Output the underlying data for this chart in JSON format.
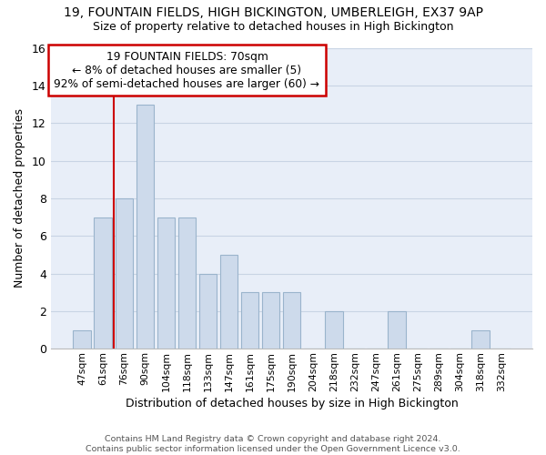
{
  "title1": "19, FOUNTAIN FIELDS, HIGH BICKINGTON, UMBERLEIGH, EX37 9AP",
  "title2": "Size of property relative to detached houses in High Bickington",
  "xlabel": "Distribution of detached houses by size in High Bickington",
  "ylabel": "Number of detached properties",
  "categories": [
    "47sqm",
    "61sqm",
    "76sqm",
    "90sqm",
    "104sqm",
    "118sqm",
    "133sqm",
    "147sqm",
    "161sqm",
    "175sqm",
    "190sqm",
    "204sqm",
    "218sqm",
    "232sqm",
    "247sqm",
    "261sqm",
    "275sqm",
    "289sqm",
    "304sqm",
    "318sqm",
    "332sqm"
  ],
  "values": [
    1,
    7,
    8,
    13,
    7,
    7,
    4,
    5,
    3,
    3,
    3,
    0,
    2,
    0,
    0,
    2,
    0,
    0,
    0,
    1,
    0
  ],
  "bar_color": "#cddaeb",
  "bar_edge_color": "#9ab4cc",
  "vline_color": "#cc0000",
  "vline_x": 1.5,
  "annotation_text": "19 FOUNTAIN FIELDS: 70sqm\n← 8% of detached houses are smaller (5)\n92% of semi-detached houses are larger (60) →",
  "annotation_box_color": "#ffffff",
  "annotation_box_edge_color": "#cc0000",
  "ylim": [
    0,
    16
  ],
  "yticks": [
    0,
    2,
    4,
    6,
    8,
    10,
    12,
    14,
    16
  ],
  "footer_text": "Contains HM Land Registry data © Crown copyright and database right 2024.\nContains public sector information licensed under the Open Government Licence v3.0.",
  "grid_color": "#c8d4e4",
  "bg_color": "#e8eef8"
}
